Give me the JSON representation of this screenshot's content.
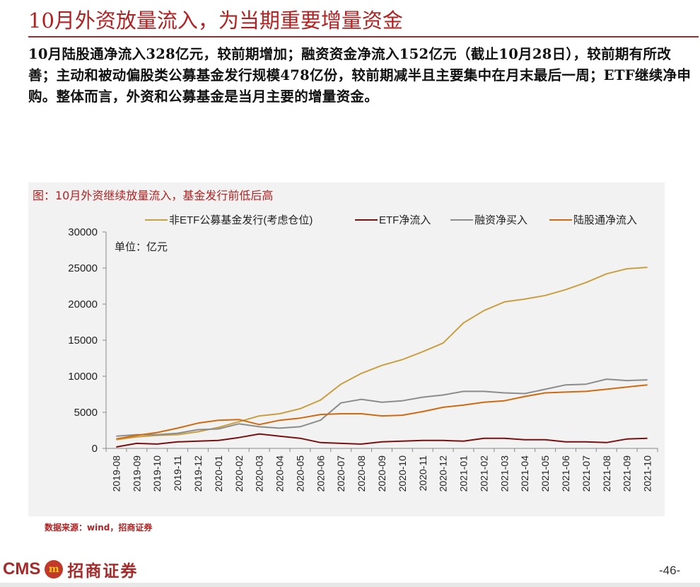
{
  "page": {
    "title": "10月外资放量流入，为当期重要增量资金",
    "summary": "10月陆股通净流入328亿元，较前期增加；融资资金净流入152亿元（截止10月28日），较前期有所改善；主动和被动偏股类公募基金发行规模478亿份，较前期减半且主要集中在月末最后一周；ETF继续净申购。整体而言，外资和公募基金是当月主要的增量资金。",
    "chart_caption": "图：10月外资继续放量流入，基金发行前低后高",
    "source": "数据来源：wind，招商证券",
    "logo_text": "CMS",
    "logo_mark": "m",
    "logo_cn": "招商证券",
    "page_number": "-46-"
  },
  "chart_data": {
    "type": "line",
    "title": "图：10月外资继续放量流入，基金发行前低后高",
    "unit_label": "单位：亿元",
    "ylim": [
      0,
      30000
    ],
    "yticks": [
      0,
      5000,
      10000,
      15000,
      20000,
      25000,
      30000
    ],
    "legend_position": "top",
    "categories": [
      "2019-08",
      "2019-09",
      "2019-10",
      "2019-11",
      "2019-12",
      "2020-01",
      "2020-02",
      "2020-03",
      "2020-04",
      "2020-05",
      "2020-06",
      "2020-07",
      "2020-08",
      "2020-09",
      "2020-10",
      "2020-11",
      "2020-12",
      "2021-01",
      "2021-02",
      "2021-03",
      "2021-04",
      "2021-05",
      "2021-06",
      "2021-07",
      "2021-08",
      "2021-09",
      "2021-10"
    ],
    "series": [
      {
        "name": "非ETF公募基金发行(考虑仓位)",
        "color": "#c8a040",
        "values": [
          1200,
          1600,
          1800,
          1900,
          2300,
          2900,
          3700,
          4500,
          4800,
          5500,
          6700,
          8900,
          10400,
          11500,
          12300,
          13400,
          14600,
          17400,
          19100,
          20300,
          20700,
          21200,
          22000,
          23000,
          24200,
          24900,
          25100
        ]
      },
      {
        "name": "ETF净流入",
        "color": "#7a1010",
        "values": [
          200,
          700,
          600,
          900,
          1000,
          1100,
          1500,
          2000,
          1700,
          1400,
          800,
          700,
          600,
          900,
          1000,
          1100,
          1100,
          1000,
          1400,
          1400,
          1200,
          1200,
          900,
          900,
          800,
          1300,
          1400
        ]
      },
      {
        "name": "融资净买入",
        "color": "#8c8c8c",
        "values": [
          1700,
          1900,
          1900,
          2100,
          2600,
          2700,
          3400,
          3000,
          2800,
          3000,
          3900,
          6300,
          6800,
          6400,
          6600,
          7100,
          7400,
          7900,
          7900,
          7700,
          7600,
          8200,
          8800,
          8900,
          9600,
          9400,
          9500
        ]
      },
      {
        "name": "陆股通净流入",
        "color": "#d06a10",
        "values": [
          1300,
          1800,
          2200,
          2800,
          3500,
          3900,
          4000,
          3300,
          3900,
          4200,
          4700,
          4800,
          4800,
          4500,
          4600,
          5100,
          5700,
          6000,
          6400,
          6600,
          7200,
          7700,
          7800,
          7900,
          8200,
          8500,
          8800
        ]
      }
    ]
  }
}
